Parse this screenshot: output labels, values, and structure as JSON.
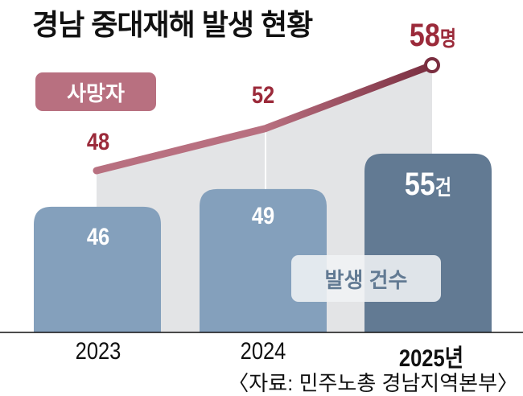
{
  "title": "경남 중대재해 발생 현황",
  "chart_data": {
    "type": "bar+line",
    "title": "경남 중대재해 발생 현황",
    "categories": [
      "2023",
      "2024",
      "2025년"
    ],
    "series": [
      {
        "name": "발생 건수",
        "type": "bar",
        "values": [
          46,
          49,
          55
        ],
        "unit": "건"
      },
      {
        "name": "사망자",
        "type": "line",
        "values": [
          48,
          52,
          58
        ],
        "unit": "명"
      }
    ],
    "value_labels": {
      "bars": [
        "46",
        "49",
        "55"
      ],
      "line": [
        "48",
        "52",
        "58"
      ]
    },
    "colors": {
      "bar": "#84a0bc",
      "bar_highlight": "#627a93",
      "line": "#b87080",
      "line_dark": "#7a2e40",
      "area": "#e3e4e6",
      "label_red": "#9b2a3a"
    }
  },
  "legend": {
    "line": "사망자",
    "bar": "발생 건수"
  },
  "source": "〈자료: 민주노총 경남지역본부〉"
}
